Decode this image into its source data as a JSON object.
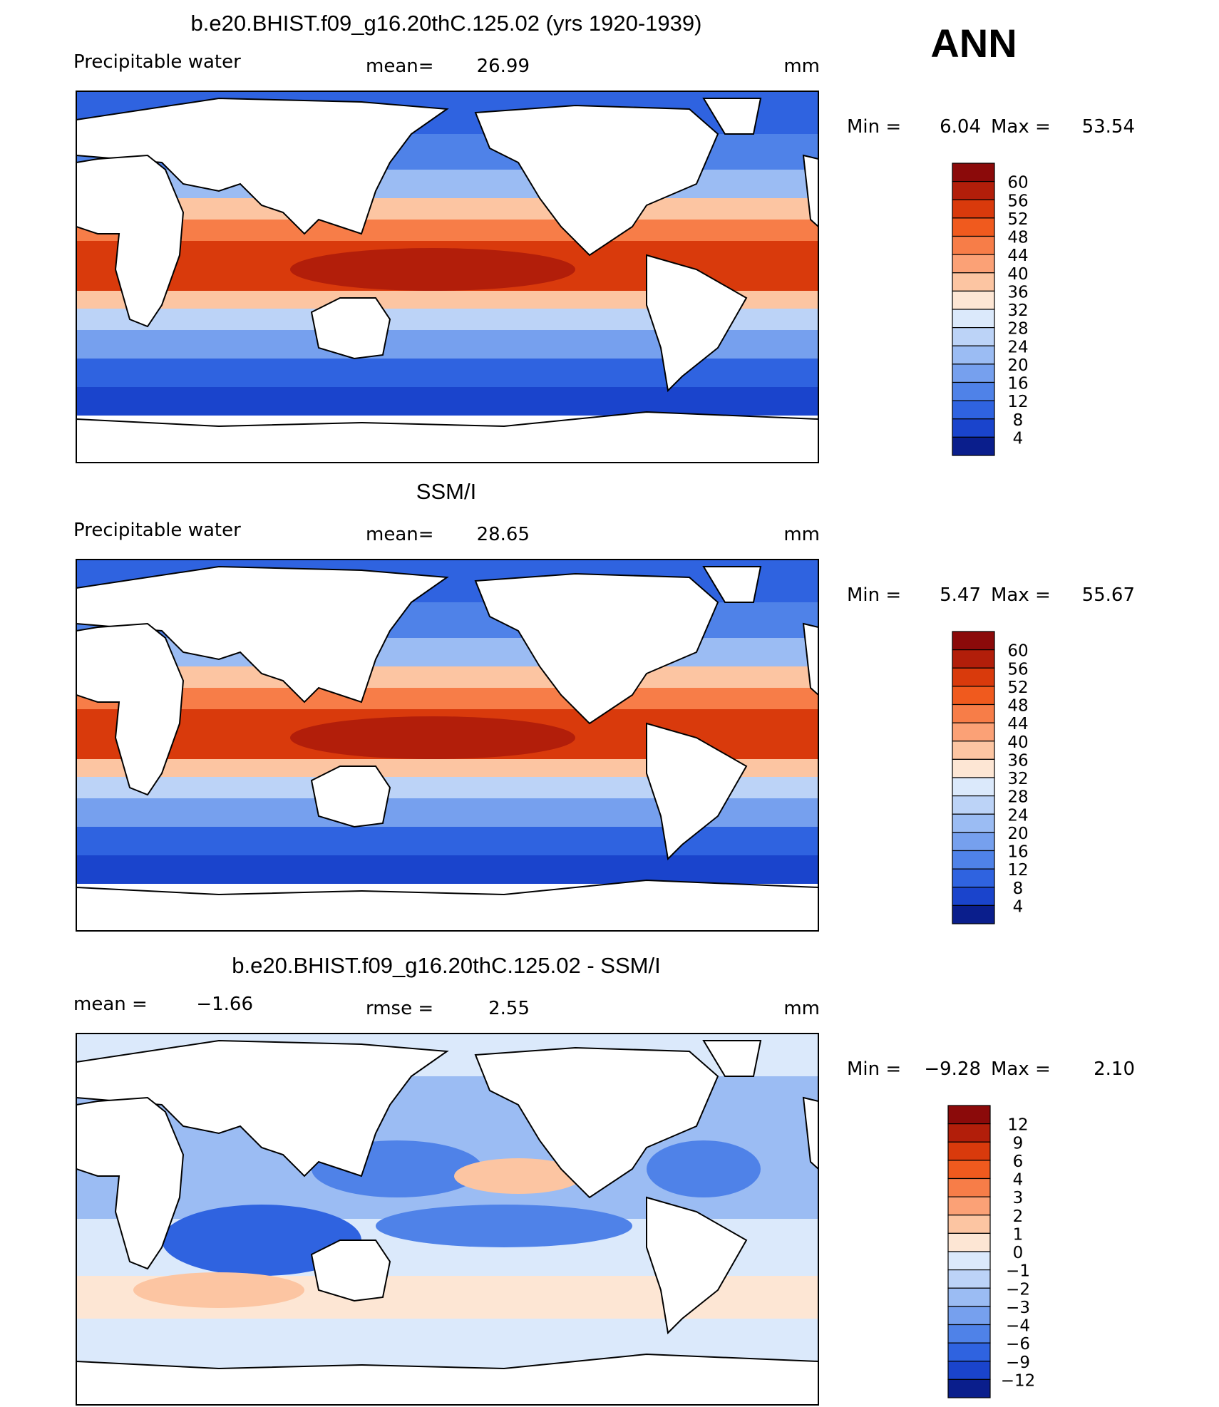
{
  "header": {
    "season": "ANN"
  },
  "panels": [
    {
      "title": "b.e20.BHIST.f09_g16.20thC.125.02 (yrs 1920-1939)",
      "left_label": "Precipitable water",
      "center_label": "mean=",
      "center_value": "26.99",
      "units": "mm",
      "min_label": "Min =",
      "min": "6.04",
      "max_label": "Max =",
      "max": "53.54",
      "colorbar": {
        "labels": [
          "60",
          "56",
          "52",
          "48",
          "44",
          "40",
          "36",
          "32",
          "28",
          "24",
          "20",
          "16",
          "12",
          "8",
          "4"
        ],
        "colors": [
          "#8b0a0a",
          "#b21e0a",
          "#d93a0c",
          "#f05a1e",
          "#f77d48",
          "#fba176",
          "#fcc5a2",
          "#fde6d4",
          "#dbe9fb",
          "#bcd3f7",
          "#9bbcf3",
          "#76a0ee",
          "#4f82e8",
          "#2f63e0",
          "#1a44cc",
          "#0a1e8c"
        ]
      }
    },
    {
      "title": "SSM/I",
      "left_label": "Precipitable water",
      "center_label": "mean=",
      "center_value": "28.65",
      "units": "mm",
      "min_label": "Min =",
      "min": "5.47",
      "max_label": "Max =",
      "max": "55.67",
      "colorbar": {
        "labels": [
          "60",
          "56",
          "52",
          "48",
          "44",
          "40",
          "36",
          "32",
          "28",
          "24",
          "20",
          "16",
          "12",
          "8",
          "4"
        ],
        "colors": [
          "#8b0a0a",
          "#b21e0a",
          "#d93a0c",
          "#f05a1e",
          "#f77d48",
          "#fba176",
          "#fcc5a2",
          "#fde6d4",
          "#dbe9fb",
          "#bcd3f7",
          "#9bbcf3",
          "#76a0ee",
          "#4f82e8",
          "#2f63e0",
          "#1a44cc",
          "#0a1e8c"
        ]
      }
    },
    {
      "title": "b.e20.BHIST.f09_g16.20thC.125.02 - SSM/I",
      "left_label": "mean =",
      "left_value": "−1.66",
      "center_label": "rmse =",
      "center_value": "2.55",
      "units": "mm",
      "min_label": "Min =",
      "min": "−9.28",
      "max_label": "Max =",
      "max": "2.10",
      "colorbar": {
        "labels": [
          "12",
          "9",
          "6",
          "4",
          "3",
          "2",
          "1",
          "0",
          "−1",
          "−2",
          "−3",
          "−4",
          "−6",
          "−9",
          "−12"
        ],
        "colors": [
          "#8b0a0a",
          "#b21e0a",
          "#d93a0c",
          "#f05a1e",
          "#f77d48",
          "#fba176",
          "#fcc5a2",
          "#fde6d4",
          "#dbe9fb",
          "#bcd3f7",
          "#9bbcf3",
          "#76a0ee",
          "#4f82e8",
          "#2f63e0",
          "#1a44cc",
          "#0a1e8c"
        ]
      }
    }
  ]
}
